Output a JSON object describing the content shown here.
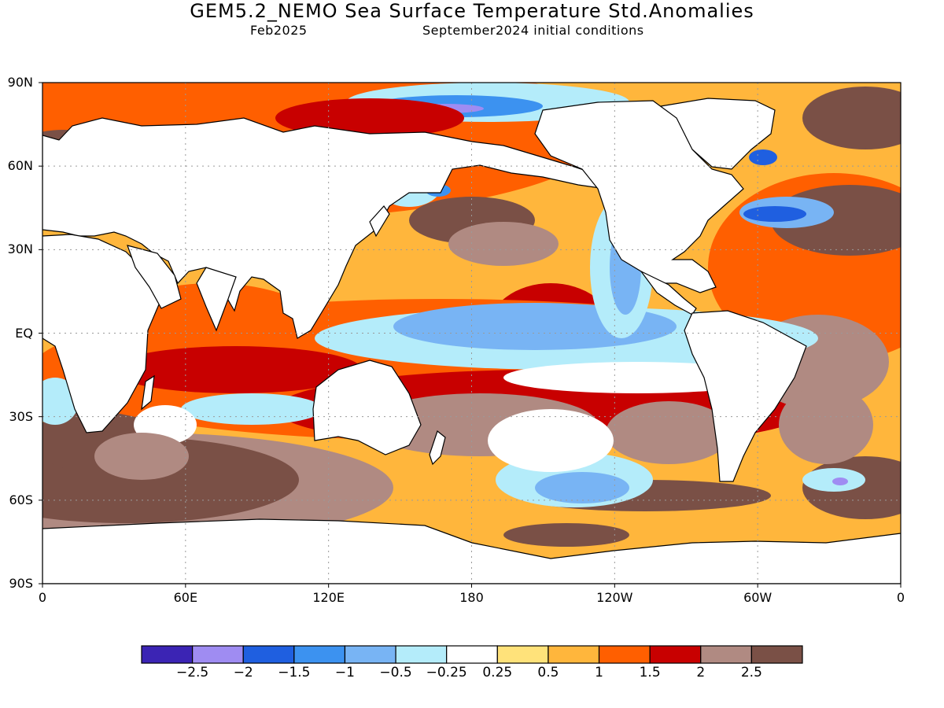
{
  "title": "GEM5.2_NEMO Sea Surface Temperature Std.Anomalies",
  "subtitle_left": "Feb2025",
  "subtitle_right": "September2024 initial conditions",
  "lat_labels": [
    "90N",
    "60N",
    "30N",
    "EQ",
    "30S",
    "60S",
    "90S"
  ],
  "lon_labels": [
    "0",
    "60E",
    "120E",
    "180",
    "120W",
    "60W",
    "0"
  ],
  "colorbar": {
    "colors": [
      "#3b24b4",
      "#9f8cf2",
      "#1f5fe0",
      "#3c92f0",
      "#78b4f4",
      "#b4ecfa",
      "#ffffff",
      "#ffe27a",
      "#ffb63c",
      "#ff5f00",
      "#c80000",
      "#b08a82",
      "#7a5046"
    ],
    "labels": [
      "-2.5",
      "-2",
      "-1.5",
      "-1",
      "-0.5",
      "-0.25",
      "0.25",
      "0.5",
      "1",
      "1.5",
      "2",
      "2.5"
    ]
  },
  "map_colors": {
    "land": "#ffffff",
    "coast": "#000000",
    "grid": "#9a9a9a"
  },
  "chart_data": {
    "type": "heatmap",
    "title": "GEM5.2_NEMO Sea Surface Temperature Std.Anomalies",
    "xlim": [
      0,
      360
    ],
    "ylim": [
      -90,
      90
    ],
    "x_ticks": [
      "0",
      "60E",
      "120E",
      "180",
      "120W",
      "60W",
      "0"
    ],
    "y_ticks": [
      "90N",
      "60N",
      "30N",
      "EQ",
      "30S",
      "60S",
      "90S"
    ],
    "levels": [
      -2.5,
      -2,
      -1.5,
      -1,
      -0.5,
      -0.25,
      0.25,
      0.5,
      1,
      1.5,
      2,
      2.5
    ],
    "grid": true,
    "colorbar_position": "bottom"
  }
}
